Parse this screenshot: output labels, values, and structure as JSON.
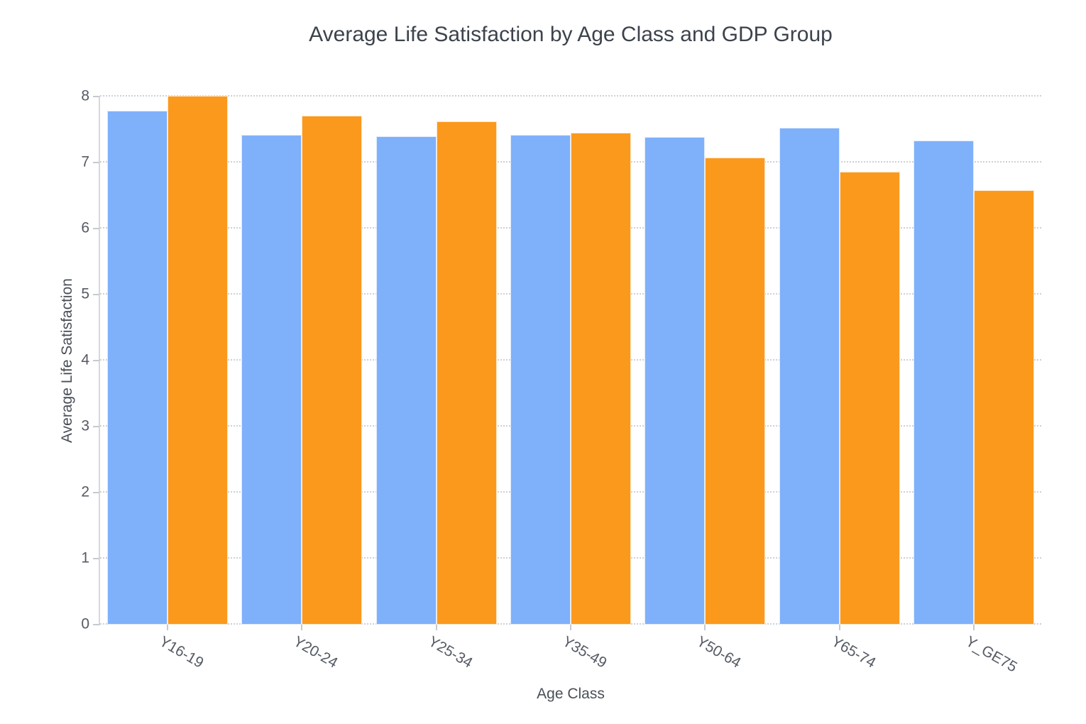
{
  "chart_data": {
    "type": "bar",
    "title": "Average Life Satisfaction by Age Class and GDP Group",
    "xlabel": "Age Class",
    "ylabel": "Average Life Satisfaction",
    "categories": [
      "Y16-19",
      "Y20-24",
      "Y25-34",
      "Y35-49",
      "Y50-64",
      "Y65-74",
      "Y_GE75"
    ],
    "series": [
      {
        "name": "gdp-group-blue",
        "color": "#7FB0FA",
        "values": [
          7.79,
          7.42,
          7.4,
          7.42,
          7.39,
          7.53,
          7.33
        ]
      },
      {
        "name": "gdp-group-orange",
        "color": "#FB991D",
        "values": [
          8.01,
          7.71,
          7.62,
          7.45,
          7.08,
          6.86,
          6.58
        ]
      }
    ],
    "ylim": [
      0,
      8
    ],
    "yticks": [
      0,
      1,
      2,
      3,
      4,
      5,
      6,
      7,
      8
    ],
    "grid": "horizontal-dotted",
    "legend_position": "none",
    "colors": {
      "background": "#ffffff",
      "gridline": "#ccd1d7",
      "axis_line": "#d5d8dc",
      "title_text": "#3d434c",
      "tick_text": "#555a64"
    }
  }
}
